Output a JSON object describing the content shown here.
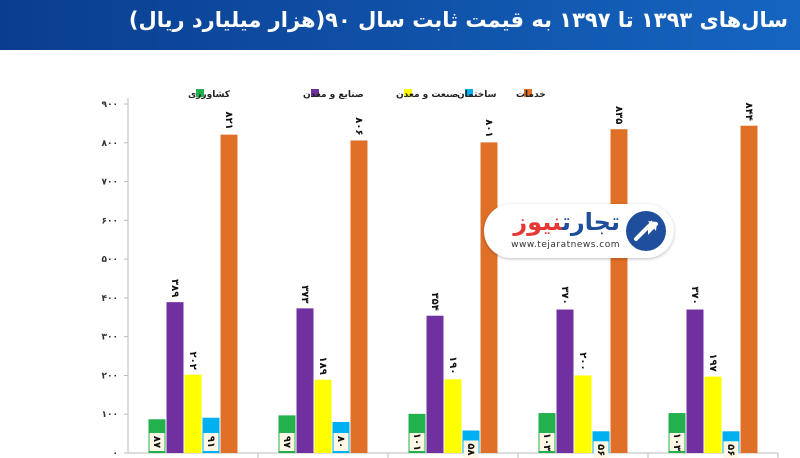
{
  "header": {
    "title": "سال‌های ۱۳۹۳ تا ۱۳۹۷  به قیمت ثابت سال ۹۰(هزار میلیارد ریال)"
  },
  "logo": {
    "name_part1": "تجارت",
    "name_part2": "نیوز",
    "url": "www.tejaratnews.com",
    "colors": {
      "part1": "#1f4e9c",
      "part2": "#e53935"
    },
    "icon": "arrow-circle-icon"
  },
  "chart_data": {
    "type": "bar",
    "categories": [
      "",
      "",
      "",
      "",
      ""
    ],
    "series": [
      {
        "name": "کشاورزی",
        "color": "#22b14c",
        "values": [
          87,
          97,
          101,
          103,
          103
        ],
        "labels": [
          "۸۷",
          "۹۷",
          "۱۰۱",
          "۱۰۳",
          "۱۰۳"
        ]
      },
      {
        "name": "صنایع و معدن",
        "color": "#7030a0",
        "values": [
          389,
          373,
          354,
          370,
          370
        ],
        "labels": [
          "۳۸۹",
          "۳۷۳",
          "۳۵۴",
          "۳۷۰",
          "۳۷۰"
        ]
      },
      {
        "name": "صنعت و معدن",
        "color": "#ffff00",
        "values": [
          202,
          189,
          190,
          200,
          197
        ],
        "labels": [
          "۲۰۲",
          "۱۸۹",
          "۱۹۰",
          "۲۰۰",
          "۱۹۷"
        ]
      },
      {
        "name": "ساختمان",
        "color": "#00b0f0",
        "values": [
          91,
          80,
          58,
          56,
          56
        ],
        "labels": [
          "۹۱",
          "۸۰",
          "۵۸",
          "۵۶",
          "۵۶"
        ]
      },
      {
        "name": "خدمات",
        "color": "#e07028",
        "values": [
          821,
          806,
          801,
          835,
          844
        ],
        "labels": [
          "۸۲۱",
          "۸۰۶",
          "۸۰۱",
          "۸۳۵",
          "۸۴۴"
        ]
      }
    ],
    "yticks": [
      0,
      100,
      200,
      300,
      400,
      500,
      600,
      700,
      800,
      900
    ],
    "ytick_labels": [
      "۰",
      "۱۰۰",
      "۲۰۰",
      "۳۰۰",
      "۴۰۰",
      "۵۰۰",
      "۶۰۰",
      "۷۰۰",
      "۸۰۰",
      "۹۰۰"
    ],
    "ylim": [
      0,
      900
    ],
    "grid": false,
    "legend_position": "top"
  }
}
